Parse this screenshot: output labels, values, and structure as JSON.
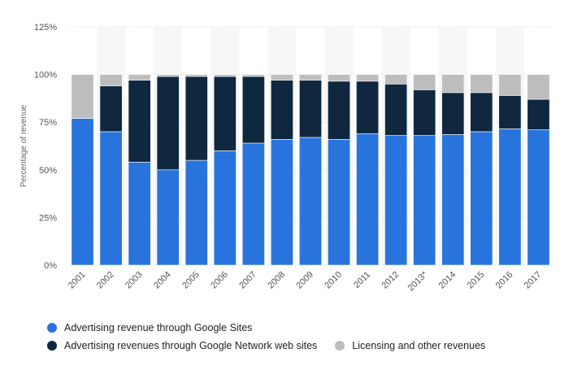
{
  "chart_data": {
    "type": "bar",
    "stacked": true,
    "title": "",
    "xlabel": "",
    "ylabel": "Percentage of revenue",
    "ylim": [
      0,
      125
    ],
    "yticks": [
      0,
      25,
      50,
      75,
      100,
      125
    ],
    "ytick_labels": [
      "0%",
      "25%",
      "50%",
      "75%",
      "100%",
      "125%"
    ],
    "grid": true,
    "legend_position": "bottom-left",
    "categories": [
      "2001",
      "2002",
      "2003",
      "2004",
      "2005",
      "2006",
      "2007",
      "2008",
      "2009",
      "2010",
      "2011",
      "2012",
      "2013*",
      "2014",
      "2015",
      "2016",
      "2017"
    ],
    "series": [
      {
        "name": "Advertising revenue through Google Sites",
        "color": "#2874dc",
        "values": [
          77,
          70,
          54,
          50,
          55,
          60,
          64,
          66,
          67,
          66,
          69,
          68,
          68,
          68.5,
          70,
          71.5,
          71
        ]
      },
      {
        "name": "Advertising revenues through Google Network web sites",
        "color": "#0f2840",
        "values": [
          0,
          24,
          43,
          49,
          44,
          39,
          35,
          31,
          30,
          30.5,
          27.5,
          27,
          24,
          22,
          20.5,
          17.5,
          16
        ]
      },
      {
        "name": "Licensing and other revenues",
        "color": "#bdbdbd",
        "values": [
          23,
          6,
          3,
          1,
          1,
          1,
          1,
          3,
          3,
          3.5,
          3.5,
          5,
          8,
          9.5,
          9.5,
          11,
          13
        ]
      }
    ]
  }
}
